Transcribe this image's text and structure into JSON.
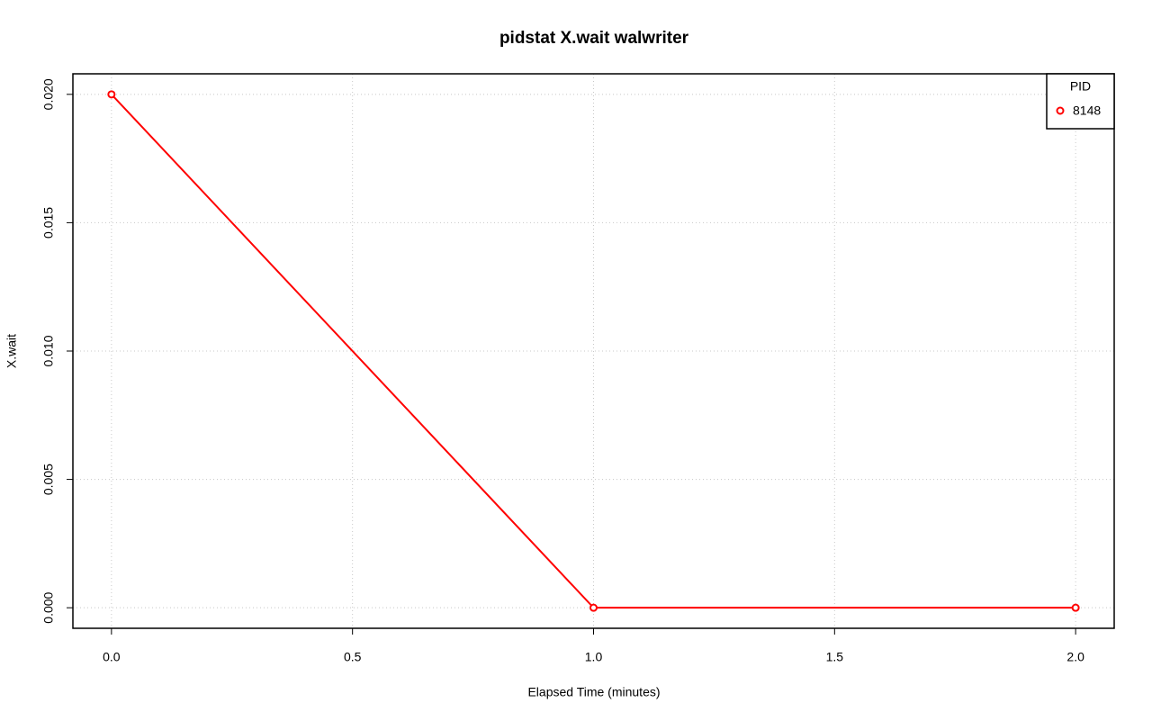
{
  "chart_data": {
    "type": "line",
    "title": "pidstat X.wait walwriter",
    "x_label": "Elapsed Time (minutes)",
    "y_label": "X.wait",
    "x": [
      0,
      1,
      2
    ],
    "series": [
      {
        "name": "8148",
        "color": "#ff0000",
        "values": [
          0.02,
          0,
          0
        ]
      }
    ],
    "legend_title": "PID",
    "legend_position": "top-right",
    "xlim": [
      -0.08,
      2.08
    ],
    "xticks": [
      {
        "value": 0,
        "label": "0.0"
      },
      {
        "value": 0.5,
        "label": "0.5"
      },
      {
        "value": 1,
        "label": "1.0"
      },
      {
        "value": 1.5,
        "label": "1.5"
      },
      {
        "value": 2,
        "label": "2.0"
      }
    ],
    "ylim": [
      -0.0008,
      0.0208
    ],
    "yticks": [
      {
        "value": 0,
        "label": "0.000"
      },
      {
        "value": 0.005,
        "label": "0.005"
      },
      {
        "value": 0.01,
        "label": "0.010"
      },
      {
        "value": 0.015,
        "label": "0.015"
      },
      {
        "value": 0.02,
        "label": "0.020"
      }
    ],
    "grid": true
  }
}
